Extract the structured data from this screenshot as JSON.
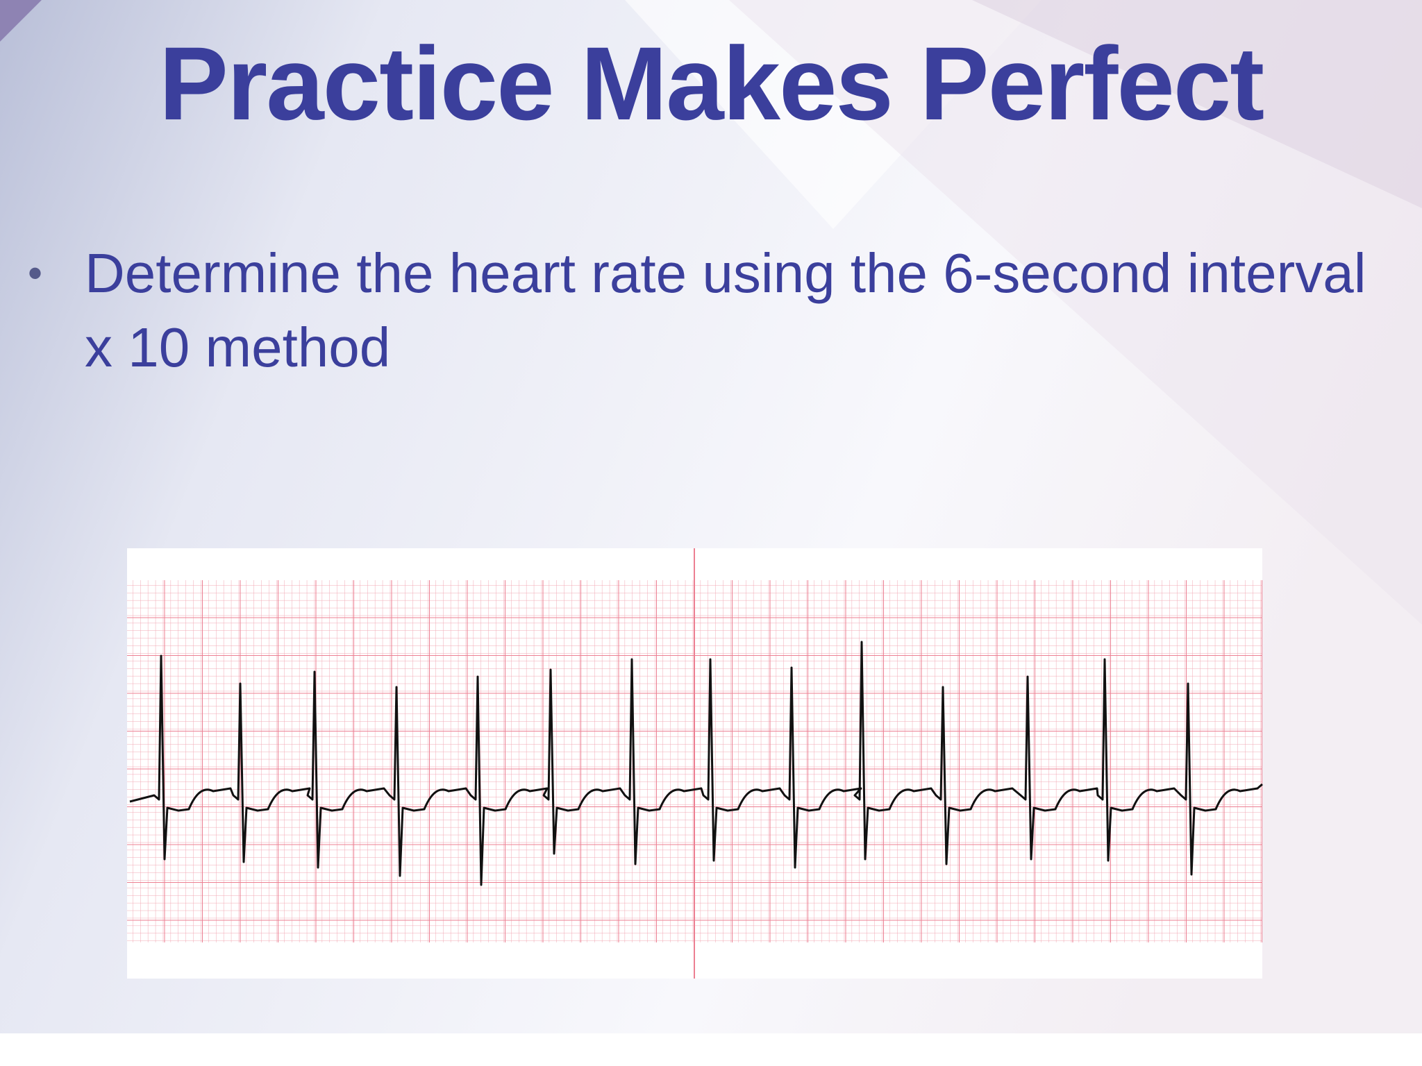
{
  "slide": {
    "title": "Practice Makes Perfect",
    "bullets": [
      "Determine the heart rate using the 6-second interval x 10 method"
    ]
  }
}
